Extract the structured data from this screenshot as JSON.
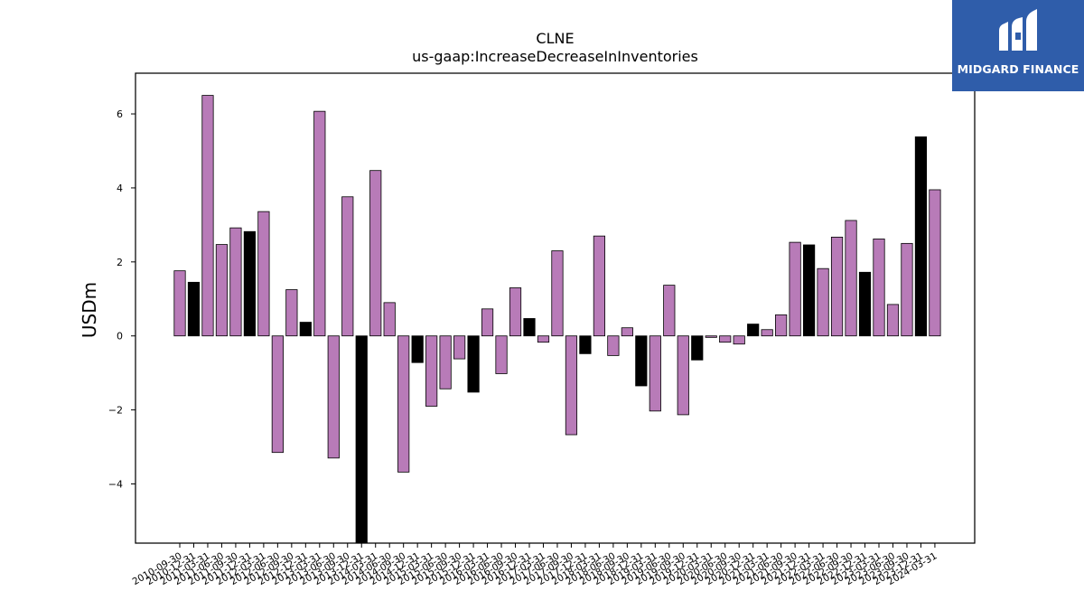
{
  "chart_data": {
    "type": "bar",
    "title": "CLNE",
    "subtitle": "us-gaap:IncreaseDecreaseInInventories",
    "xlabel": "",
    "ylabel": "USDm",
    "ylim": [
      -5.6,
      7.1
    ],
    "yticks": [
      -4,
      -2,
      0,
      2,
      4,
      6
    ],
    "ytick_labels": [
      "−4",
      "−2",
      "0",
      "2",
      "4",
      "6"
    ],
    "grid": false,
    "colors": {
      "quarter": "#b87bb8",
      "annual": "#000000",
      "edge": "#000000"
    },
    "categories": [
      "2010-09-30",
      "2010-12-31",
      "2011-03-31",
      "2011-06-30",
      "2011-09-30",
      "2011-12-31",
      "2012-03-31",
      "2012-06-30",
      "2012-09-30",
      "2012-12-31",
      "2013-03-31",
      "2013-06-30",
      "2013-09-30",
      "2013-12-31",
      "2014-03-31",
      "2014-06-30",
      "2014-09-30",
      "2014-12-31",
      "2015-03-31",
      "2015-06-30",
      "2015-09-30",
      "2015-12-31",
      "2016-03-31",
      "2016-06-30",
      "2016-09-30",
      "2016-12-31",
      "2017-03-31",
      "2017-06-30",
      "2017-09-30",
      "2017-12-31",
      "2018-03-31",
      "2018-06-30",
      "2018-09-30",
      "2018-12-31",
      "2019-03-31",
      "2019-06-30",
      "2019-09-30",
      "2019-12-31",
      "2020-03-31",
      "2020-06-30",
      "2020-09-30",
      "2020-12-31",
      "2021-03-31",
      "2021-06-30",
      "2021-09-30",
      "2021-12-31",
      "2022-03-31",
      "2022-06-30",
      "2022-09-30",
      "2022-12-31",
      "2023-03-31",
      "2023-06-30",
      "2023-09-30",
      "2023-12-31",
      "2024-03-31"
    ],
    "values": [
      1.76,
      1.45,
      6.5,
      2.47,
      2.92,
      2.82,
      3.36,
      -3.15,
      1.25,
      0.37,
      6.07,
      -3.3,
      3.76,
      -5.8,
      4.47,
      0.9,
      -3.68,
      -0.72,
      -1.9,
      -1.43,
      -0.62,
      -1.52,
      0.73,
      -1.02,
      1.3,
      0.47,
      -0.17,
      2.3,
      -2.67,
      -0.48,
      2.7,
      -0.53,
      0.22,
      -1.35,
      -2.03,
      1.37,
      -2.13,
      -0.65,
      -0.04,
      -0.17,
      -0.22,
      0.32,
      0.17,
      0.57,
      2.53,
      2.46,
      1.82,
      2.67,
      3.12,
      1.72,
      2.62,
      0.85,
      2.5,
      5.38,
      3.95
    ],
    "annual": [
      false,
      true,
      false,
      false,
      false,
      true,
      false,
      false,
      false,
      true,
      false,
      false,
      false,
      true,
      false,
      false,
      false,
      true,
      false,
      false,
      false,
      true,
      false,
      false,
      false,
      true,
      false,
      false,
      false,
      true,
      false,
      false,
      false,
      true,
      false,
      false,
      false,
      true,
      false,
      false,
      false,
      true,
      false,
      false,
      false,
      true,
      false,
      false,
      false,
      true,
      false,
      false,
      false,
      true,
      false
    ]
  },
  "logo": {
    "text": "MIDGARD FINANCE",
    "bg": "#2f5daa",
    "fg": "#ffffff"
  }
}
